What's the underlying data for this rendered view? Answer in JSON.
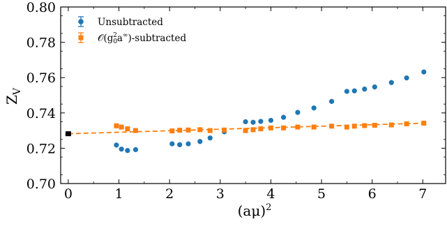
{
  "chart_data": {
    "type": "scatter",
    "title": "",
    "xlabel": "(aμ)",
    "xlabel_sup": "2",
    "ylabel": "Z",
    "ylabel_sub": "V",
    "xlim": [
      -0.15,
      7.45
    ],
    "ylim": [
      0.7,
      0.8
    ],
    "xticks": [
      0,
      1,
      2,
      3,
      4,
      5,
      6,
      7
    ],
    "xtick_labels": [
      "0",
      "1",
      "2",
      "3",
      "4",
      "5",
      "6",
      "7"
    ],
    "yticks": [
      0.7,
      0.72,
      0.74,
      0.76,
      0.78,
      0.8
    ],
    "ytick_labels": [
      "0.70",
      "0.72",
      "0.74",
      "0.76",
      "0.78",
      "0.80"
    ],
    "grid": false,
    "legend_position": "top-left",
    "series": [
      {
        "name": "Unsubtracted",
        "marker": "circle",
        "color": "#1f77b4",
        "points": [
          [
            0.95,
            0.7218
          ],
          [
            1.05,
            0.7195
          ],
          [
            1.17,
            0.7187
          ],
          [
            1.33,
            0.7192
          ],
          [
            2.05,
            0.7225
          ],
          [
            2.2,
            0.722
          ],
          [
            2.37,
            0.7225
          ],
          [
            2.6,
            0.7238
          ],
          [
            2.8,
            0.7258
          ],
          [
            3.08,
            0.7293
          ],
          [
            3.5,
            0.735
          ],
          [
            3.65,
            0.7347
          ],
          [
            3.8,
            0.7352
          ],
          [
            4.0,
            0.7358
          ],
          [
            4.25,
            0.7375
          ],
          [
            4.53,
            0.7403
          ],
          [
            4.85,
            0.7428
          ],
          [
            5.2,
            0.7465
          ],
          [
            5.5,
            0.7522
          ],
          [
            5.65,
            0.7525
          ],
          [
            5.85,
            0.7535
          ],
          [
            6.05,
            0.7547
          ],
          [
            6.38,
            0.7572
          ],
          [
            6.68,
            0.7598
          ],
          [
            7.02,
            0.7632
          ]
        ]
      },
      {
        "name": "𝒪(g0²a∞)-subtracted",
        "marker": "square",
        "color": "#ff7f0e",
        "points": [
          [
            0.95,
            0.7327
          ],
          [
            1.05,
            0.732
          ],
          [
            1.17,
            0.731
          ],
          [
            1.33,
            0.73
          ],
          [
            2.05,
            0.7298
          ],
          [
            2.2,
            0.7302
          ],
          [
            2.37,
            0.7303
          ],
          [
            2.6,
            0.7305
          ],
          [
            2.8,
            0.73
          ],
          [
            3.08,
            0.7303
          ],
          [
            3.5,
            0.73
          ],
          [
            3.65,
            0.7305
          ],
          [
            3.8,
            0.731
          ],
          [
            4.0,
            0.7315
          ],
          [
            4.25,
            0.7315
          ],
          [
            4.53,
            0.732
          ],
          [
            4.85,
            0.732
          ],
          [
            5.2,
            0.7325
          ],
          [
            5.5,
            0.732
          ],
          [
            5.65,
            0.7325
          ],
          [
            5.85,
            0.7328
          ],
          [
            6.05,
            0.733
          ],
          [
            6.38,
            0.7332
          ],
          [
            6.68,
            0.7338
          ],
          [
            7.02,
            0.7342
          ]
        ]
      }
    ],
    "fit_line": {
      "color": "#ff7f0e",
      "style": "dashed",
      "points": [
        [
          0.0,
          0.7282
        ],
        [
          7.02,
          0.7342
        ]
      ]
    },
    "extrapolated_point": {
      "color": "#000000",
      "marker": "square",
      "x": 0.0,
      "y": 0.7282
    }
  },
  "legend": {
    "unsubtracted": "Unsubtracted",
    "subtracted_prefix": "𝒪(g",
    "subtracted_sub": "0",
    "subtracted_sup": "2",
    "subtracted_mid": "a",
    "subtracted_sup2": "∞",
    "subtracted_suffix": ")-subtracted"
  }
}
